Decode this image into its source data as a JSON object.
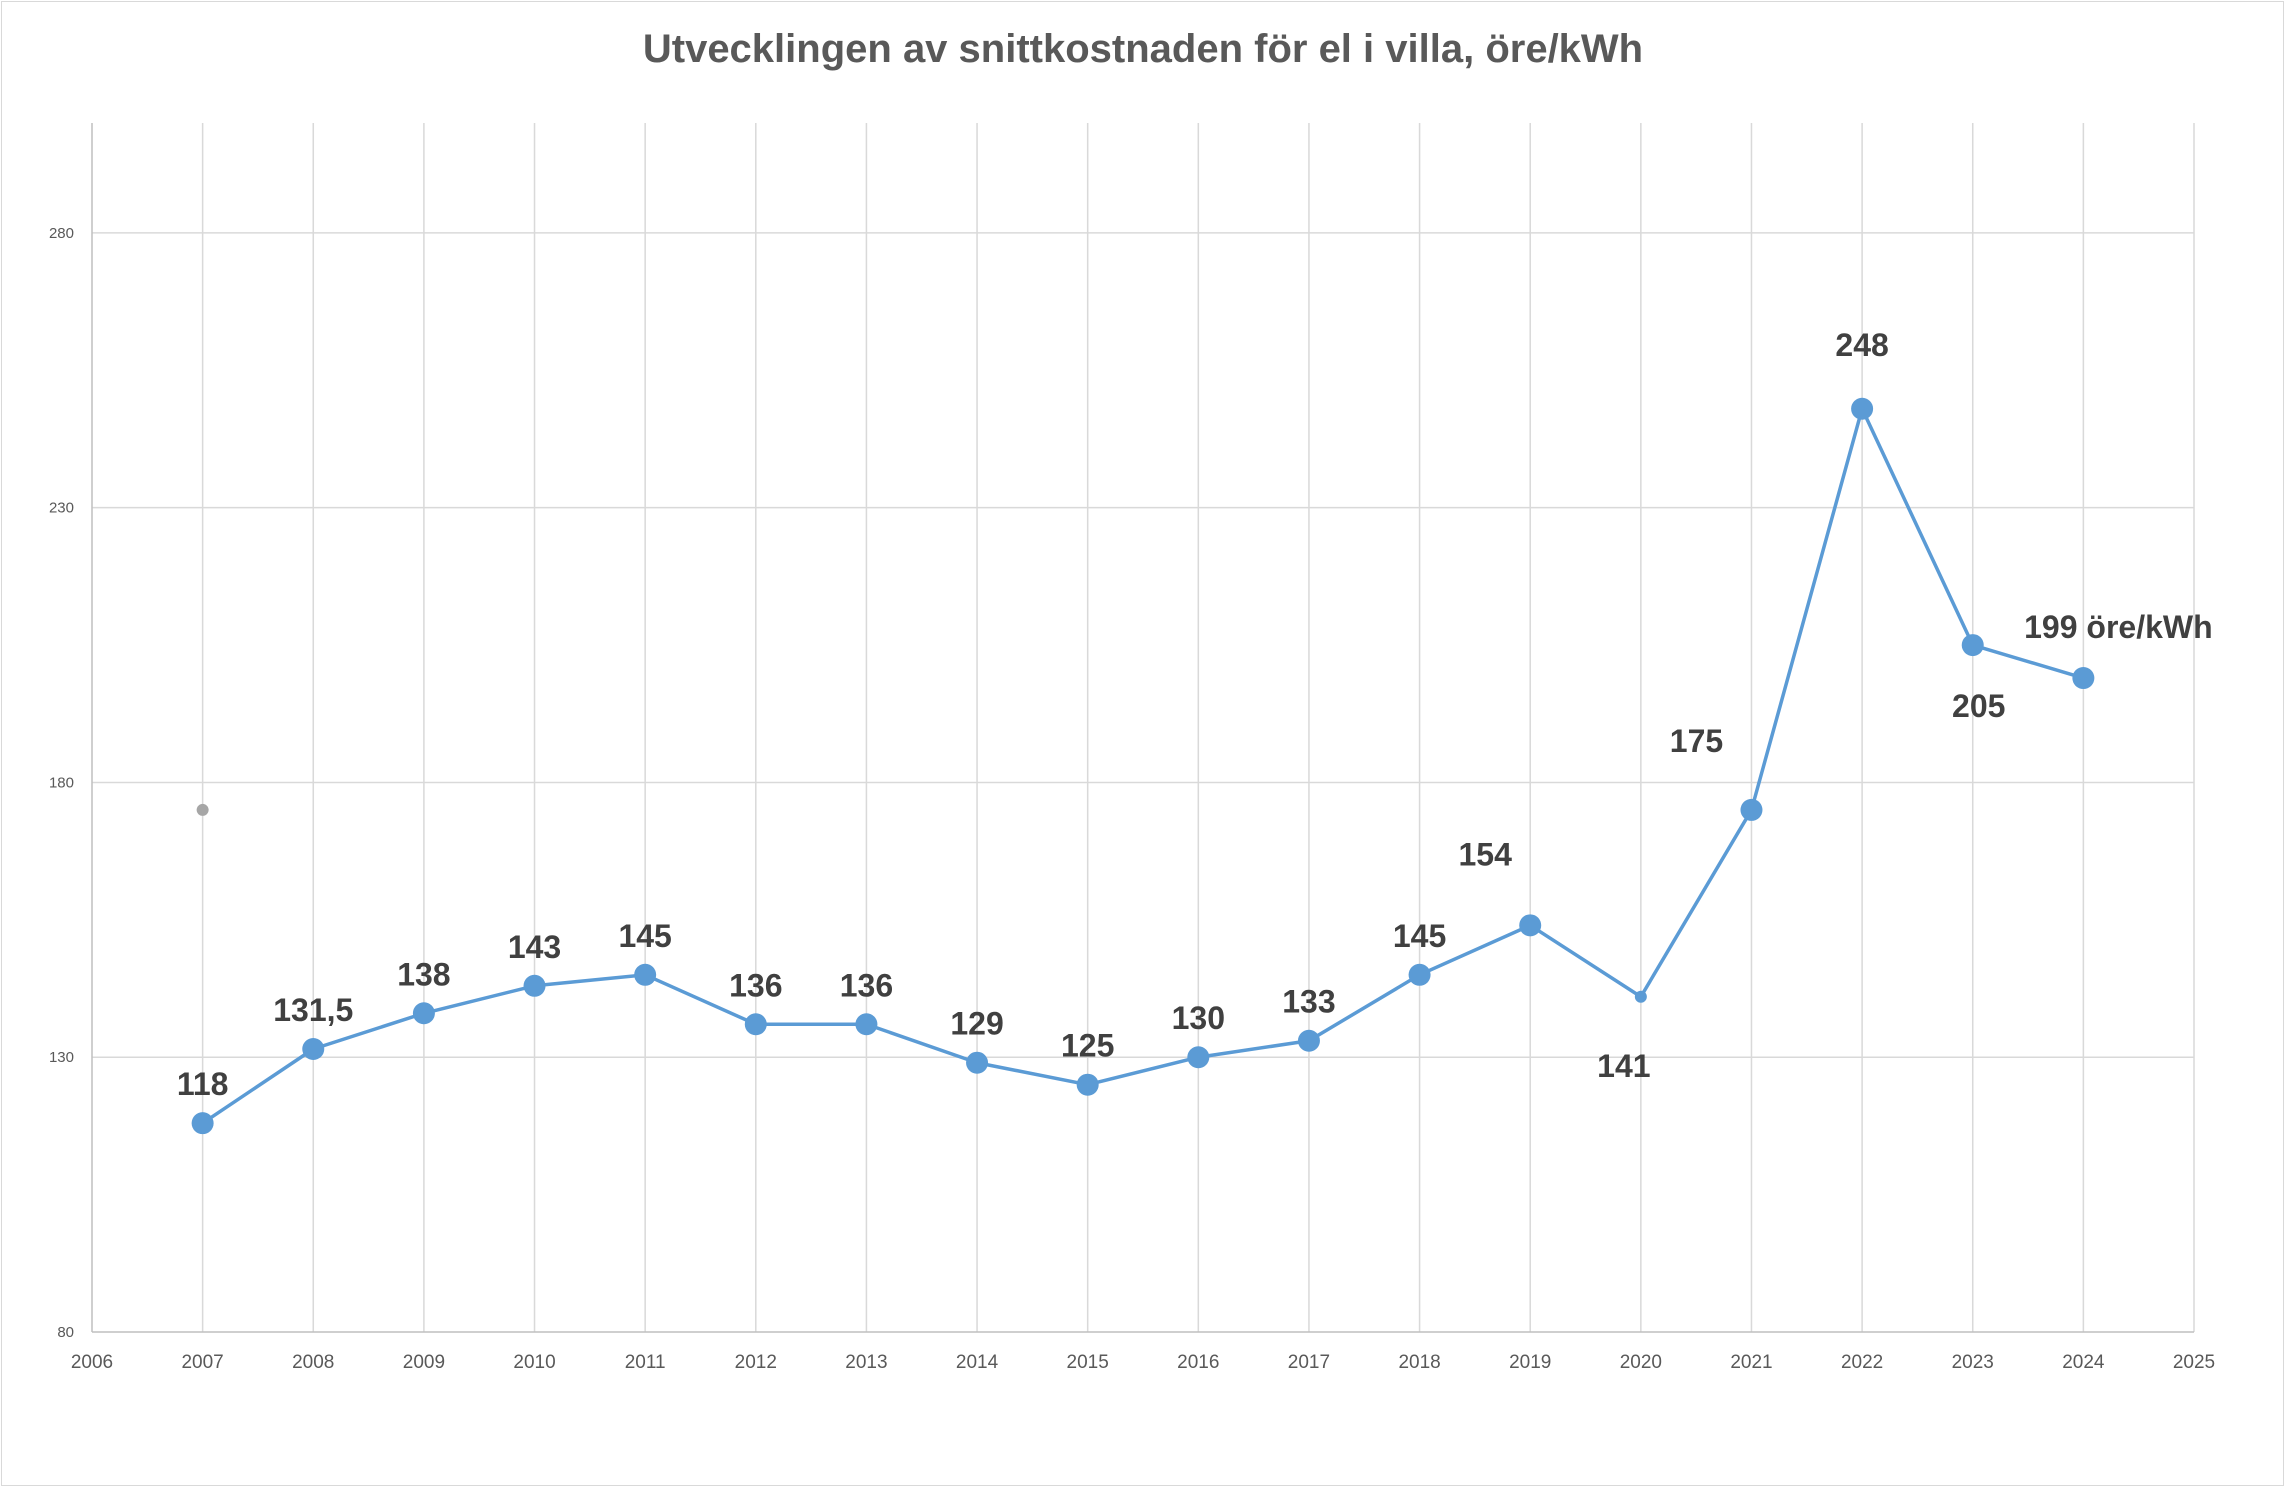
{
  "chart_data": {
    "type": "line",
    "title": "Utvecklingen av snittkostnaden för el i villa, öre/kWh",
    "xlabel": "",
    "ylabel": "",
    "xlim": [
      2006,
      2025
    ],
    "ylim": [
      80,
      300
    ],
    "x_ticks": [
      "2006",
      "2007",
      "2008",
      "2009",
      "2010",
      "2011",
      "2012",
      "2013",
      "2014",
      "2015",
      "2016",
      "2017",
      "2018",
      "2019",
      "2020",
      "2021",
      "2022",
      "2023",
      "2024",
      "2025"
    ],
    "y_ticks": [
      "80",
      "130",
      "180",
      "230",
      "280"
    ],
    "grid": true,
    "legend": "none",
    "series": [
      {
        "color": "#5b9bd5",
        "x": [
          2007,
          2008,
          2009,
          2010,
          2011,
          2012,
          2013,
          2014,
          2015,
          2016,
          2017,
          2018,
          2019,
          2020,
          2021,
          2022,
          2023,
          2024
        ],
        "values": [
          118,
          131.5,
          138,
          143,
          145,
          136,
          136,
          129,
          125,
          130,
          133,
          145,
          154,
          141,
          175,
          248,
          205,
          199
        ],
        "labels": [
          "118",
          "131,5",
          "138",
          "143",
          "145",
          "136",
          "136",
          "129",
          "125",
          "130",
          "133",
          "145",
          "154",
          "141",
          "175",
          "248",
          "205",
          "199 öre/kWh"
        ],
        "small_markers": [
          2020
        ]
      }
    ],
    "extra_points": [
      {
        "x": 2007,
        "y": 175,
        "color": "#a6a6a6"
      }
    ]
  }
}
